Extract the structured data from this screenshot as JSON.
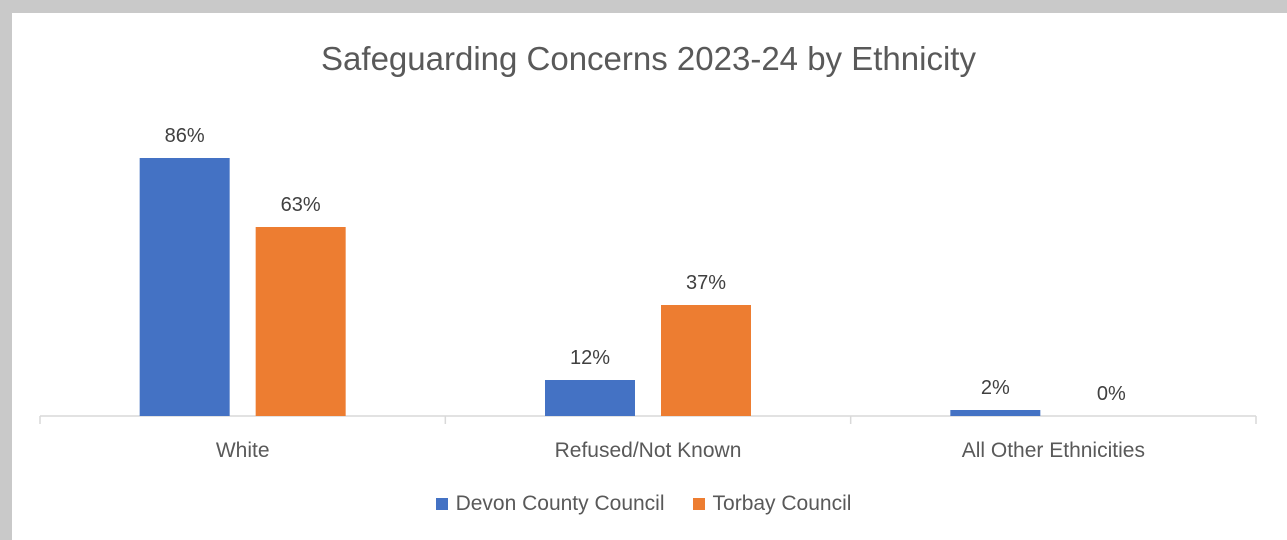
{
  "chart_data": {
    "type": "bar",
    "title": "Safeguarding Concerns 2023-24 by Ethnicity",
    "categories": [
      "White",
      "Refused/Not Known",
      "All Other Ethnicities"
    ],
    "series": [
      {
        "name": "Devon County Council",
        "values": [
          86,
          12,
          2
        ],
        "labels": [
          "86%",
          "12%",
          "2%"
        ],
        "color": "#4472C4"
      },
      {
        "name": "Torbay Council",
        "values": [
          63,
          37,
          0
        ],
        "labels": [
          "63%",
          "37%",
          "0%"
        ],
        "color": "#ED7D31"
      }
    ],
    "ylim": [
      0,
      86
    ],
    "unit": "%",
    "grid": false,
    "legend": "bottom"
  }
}
